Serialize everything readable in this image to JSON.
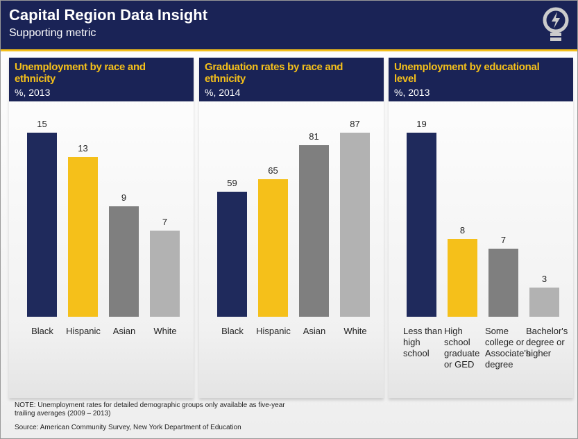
{
  "header": {
    "title": "Capital Region Data Insight",
    "subtitle": "Supporting metric"
  },
  "chart_data": [
    {
      "type": "bar",
      "title": "Unemployment by race and ethnicity",
      "subtitle": "%, 2013",
      "categories": [
        "Black",
        "Hispanic",
        "Asian",
        "White"
      ],
      "values": [
        15,
        13,
        9,
        7
      ],
      "colors": [
        "#1f2a5c",
        "#f5c01a",
        "#7f7f7f",
        "#b2b2b2"
      ]
    },
    {
      "type": "bar",
      "title": "Graduation rates by race and ethnicity",
      "subtitle": "%, 2014",
      "categories": [
        "Black",
        "Hispanic",
        "Asian",
        "White"
      ],
      "values": [
        59,
        65,
        81,
        87
      ],
      "colors": [
        "#1f2a5c",
        "#f5c01a",
        "#7f7f7f",
        "#b2b2b2"
      ]
    },
    {
      "type": "bar",
      "title": "Unemployment by educational level",
      "subtitle": "%, 2013",
      "categories": [
        "Less than high school",
        "High school graduate or GED",
        "Some college or Associate's degree",
        "Bachelor's degree or higher"
      ],
      "values": [
        19,
        8,
        7,
        3
      ],
      "colors": [
        "#1f2a5c",
        "#f5c01a",
        "#7f7f7f",
        "#b2b2b2"
      ]
    }
  ],
  "notes": {
    "note": "NOTE: Unemployment rates for detailed demographic groups only available as five-year trailing averages  (2009 – 2013)",
    "source": "Source: American Community Survey, New York Department of Education"
  }
}
